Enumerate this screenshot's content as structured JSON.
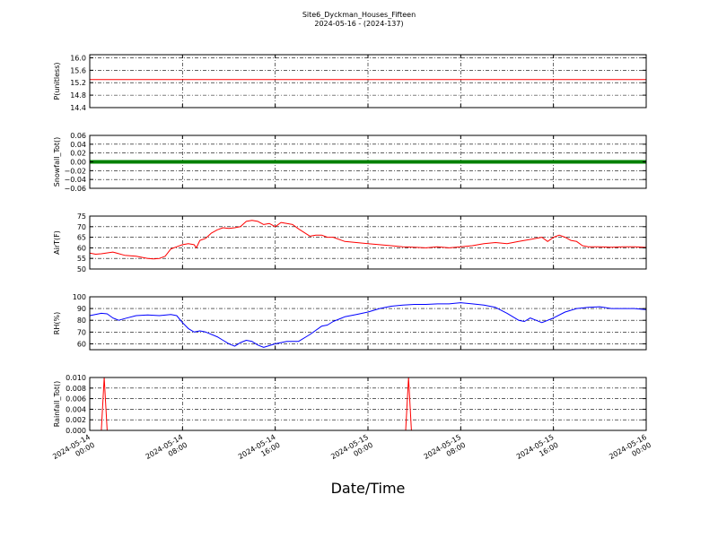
{
  "figure": {
    "title_line1": "Site6_Dyckman_Houses_Fifteen",
    "title_line2": "2024-05-16 - (2024-137)",
    "xlabel": "Date/Time",
    "x_ticks": [
      "2024-05-14 00:00",
      "2024-05-14 08:00",
      "2024-05-14 16:00",
      "2024-05-15 00:00",
      "2024-05-15 08:00",
      "2024-05-15 16:00",
      "2024-05-16 00:00"
    ]
  },
  "chart_data": [
    {
      "type": "line",
      "ylabel": "P(unitless)",
      "color": "#ff0000",
      "xlim": [
        0,
        48
      ],
      "ylim": [
        14.4,
        16.1
      ],
      "yticks": [
        "16.0",
        "15.6",
        "15.2",
        "14.8",
        "14.4"
      ],
      "grid": true,
      "series": [
        {
          "x": [
            0,
            48
          ],
          "y": [
            15.3,
            15.3
          ]
        }
      ]
    },
    {
      "type": "line",
      "ylabel": "Snowfall_Tot()",
      "color": "#008000",
      "xlim": [
        0,
        48
      ],
      "ylim": [
        -0.06,
        0.06
      ],
      "yticks": [
        "0.06",
        "0.04",
        "0.02",
        "0.00",
        "−0.02",
        "−0.04",
        "−0.06"
      ],
      "grid": true,
      "series": [
        {
          "x": [
            0,
            48
          ],
          "y": [
            0,
            0
          ]
        }
      ]
    },
    {
      "type": "line",
      "ylabel": "AirT(F)",
      "color": "#ff0000",
      "xlim": [
        0,
        48
      ],
      "ylim": [
        50,
        75
      ],
      "yticks": [
        "75",
        "70",
        "65",
        "60",
        "55",
        "50"
      ],
      "grid": true,
      "series": [
        {
          "x": [
            0,
            0.5,
            1,
            2,
            3,
            4,
            5,
            5.5,
            6,
            6.5,
            7,
            7.5,
            8,
            8.5,
            9,
            9.2,
            9.5,
            10,
            10.5,
            11,
            11.5,
            12,
            12.5,
            13,
            13.5,
            14,
            14.5,
            15,
            15.5,
            16,
            16.5,
            17,
            17.5,
            18,
            19,
            19.5,
            20,
            20.5,
            21,
            22,
            23,
            24,
            25,
            26,
            27,
            28,
            29,
            30,
            31,
            32,
            33,
            34,
            35,
            36,
            37,
            38,
            39,
            39.5,
            40,
            40.5,
            41,
            41.5,
            42,
            42.5,
            43,
            44,
            45,
            46,
            47,
            48
          ],
          "y": [
            57.5,
            57,
            57.2,
            58,
            56.5,
            56,
            55,
            54.8,
            55,
            56,
            59.5,
            60.5,
            61.5,
            62,
            61.5,
            60,
            63.5,
            64.5,
            67,
            68.5,
            69.5,
            69.2,
            69.5,
            70,
            72.5,
            73,
            72.5,
            71,
            71.5,
            70,
            72,
            71.5,
            71,
            69,
            65.5,
            66,
            66,
            65,
            65,
            63,
            62.5,
            62,
            61.5,
            61,
            60.5,
            60.3,
            60,
            60.5,
            60,
            60.5,
            61,
            62,
            62.5,
            62,
            63,
            64,
            65,
            63,
            65,
            66,
            65,
            63.5,
            63,
            61,
            60.5,
            60.5,
            60.3,
            60.5,
            60.5,
            60.2
          ]
        }
      ]
    },
    {
      "type": "line",
      "ylabel": "RH(%)",
      "color": "#0000ff",
      "xlim": [
        0,
        48
      ],
      "ylim": [
        55,
        100
      ],
      "yticks": [
        "100",
        "90",
        "80",
        "70",
        "60"
      ],
      "grid": true,
      "series": [
        {
          "x": [
            0,
            1,
            1.5,
            2,
            2.5,
            3,
            4,
            5,
            6,
            7,
            7.5,
            8,
            8.5,
            9,
            9.5,
            10,
            11,
            11.5,
            12,
            12.5,
            13,
            13.5,
            14,
            14.5,
            15,
            16,
            16.5,
            17,
            17.5,
            18,
            19,
            20,
            20.5,
            21,
            22,
            23,
            24,
            25,
            26,
            27,
            28,
            29,
            30,
            31,
            32,
            33,
            34,
            35,
            36,
            37,
            37.5,
            38,
            38.5,
            39,
            40,
            41,
            42,
            43,
            44,
            45,
            46,
            47,
            48
          ],
          "y": [
            84,
            86,
            85.5,
            82,
            80,
            81.5,
            84,
            84.5,
            84,
            85,
            84,
            78,
            73,
            70,
            71,
            70,
            66,
            63,
            60,
            58,
            61,
            63,
            62,
            59,
            57,
            60,
            61,
            62,
            62,
            62,
            68,
            75,
            76,
            79,
            83,
            85,
            87,
            90,
            92,
            93,
            93.5,
            93.5,
            94,
            94,
            95,
            94,
            93,
            91,
            86,
            80,
            79,
            82,
            80,
            78,
            82,
            87,
            90,
            91,
            91.5,
            90,
            90,
            90,
            89
          ]
        }
      ]
    },
    {
      "type": "line",
      "ylabel": "Rainfall_Tot()",
      "color": "#ff0000",
      "xlim": [
        0,
        48
      ],
      "ylim": [
        0,
        0.01
      ],
      "yticks": [
        "0.010",
        "0.008",
        "0.006",
        "0.004",
        "0.002",
        "0.000"
      ],
      "grid": true,
      "series": [
        {
          "x": [
            0,
            1,
            1.25,
            1.5,
            27.25,
            27.5,
            27.75,
            48
          ],
          "y": [
            0,
            0,
            0.01,
            0,
            0,
            0.01,
            0,
            0
          ]
        }
      ]
    }
  ]
}
